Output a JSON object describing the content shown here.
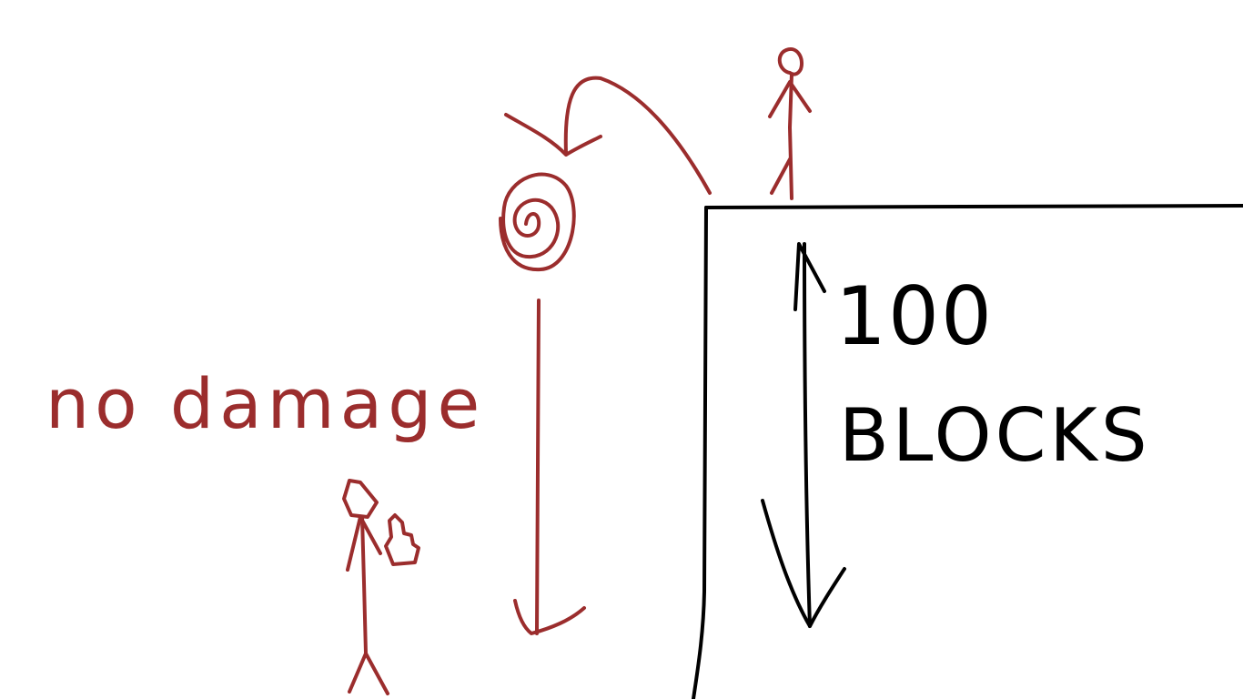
{
  "colors": {
    "background": "#ffffff",
    "red_ink": "#9b2d2d",
    "black_ink": "#000000"
  },
  "labels": {
    "no_damage": "no damage",
    "height_number": "100",
    "height_unit": "BLOCKS"
  },
  "icons": {
    "spiral": "spiral-icon",
    "hand": "waving-hand-icon"
  }
}
